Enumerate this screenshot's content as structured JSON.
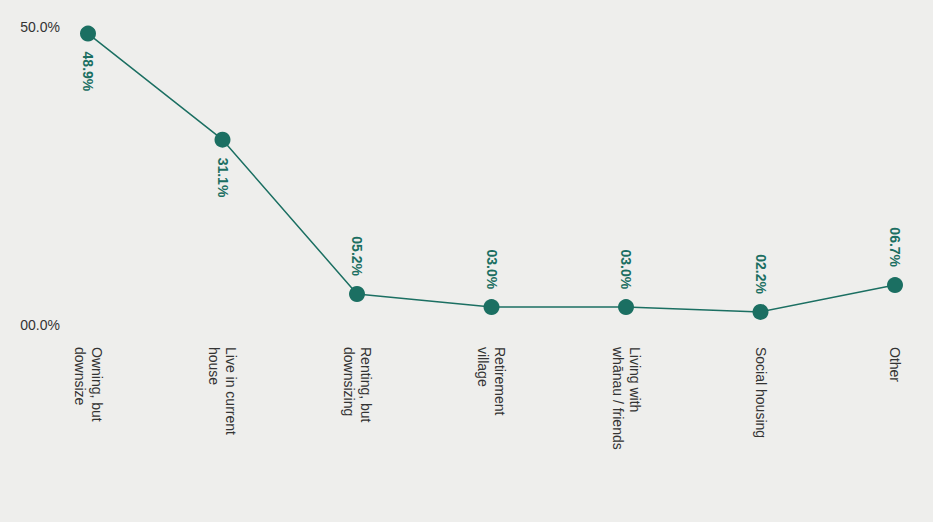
{
  "chart_data": {
    "type": "line",
    "categories": [
      "Owning, but downsize",
      "Live in current house",
      "Renting, but downsizing",
      "Retirement village",
      "Living with whānau / friends",
      "Social housing",
      "Other"
    ],
    "values": [
      48.9,
      31.1,
      5.2,
      3.0,
      3.0,
      2.2,
      6.7
    ],
    "value_labels": [
      "48.9%",
      "31.1%",
      "05.2%",
      "03.0%",
      "03.0%",
      "02.2%",
      "06.7%"
    ],
    "color": "#1b6f62",
    "marker": "circle",
    "ylim": [
      0,
      50
    ],
    "yticks": [
      {
        "value": 0,
        "label": "00.0%"
      },
      {
        "value": 50,
        "label": "50.0%"
      }
    ],
    "grid": false,
    "data_labels": true
  }
}
